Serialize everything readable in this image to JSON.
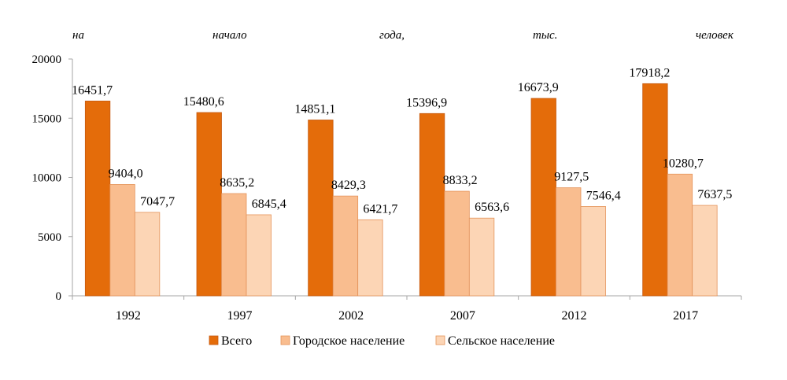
{
  "chart_data": {
    "type": "bar",
    "title_words": [
      "на",
      "начало",
      "года,",
      "тыс.",
      "человек"
    ],
    "categories": [
      "1992",
      "1997",
      "2002",
      "2007",
      "2012",
      "2017"
    ],
    "series": [
      {
        "name": "Всего",
        "color": "#e46c0a",
        "stroke": "#c55a11",
        "values": [
          16451.7,
          15480.6,
          14851.1,
          15396.9,
          16673.9,
          17918.2
        ],
        "labels": [
          "16451,7",
          "15480,6",
          "14851,1",
          "15396,9",
          "16673,9",
          "17918,2"
        ]
      },
      {
        "name": "Городское население",
        "color": "#f9bd8f",
        "stroke": "#e4935a",
        "values": [
          9404.0,
          8635.2,
          8429.3,
          8833.2,
          9127.5,
          10280.7
        ],
        "labels": [
          "9404,0",
          "8635,2",
          "8429,3",
          "8833,2",
          "9127,5",
          "10280,7"
        ]
      },
      {
        "name": "Сельское население",
        "color": "#fcd5b5",
        "stroke": "#e4935a",
        "values": [
          7047.7,
          6845.4,
          6421.7,
          6563.6,
          7546.4,
          7637.5
        ],
        "labels": [
          "7047,7",
          "6845,4",
          "6421,7",
          "6563,6",
          "7546,4",
          "7637,5"
        ]
      }
    ],
    "ylim": [
      0,
      20000
    ],
    "yticks": [
      "0",
      "5000",
      "10000",
      "15000",
      "20000"
    ],
    "grid": false,
    "legend_position": "bottom"
  }
}
